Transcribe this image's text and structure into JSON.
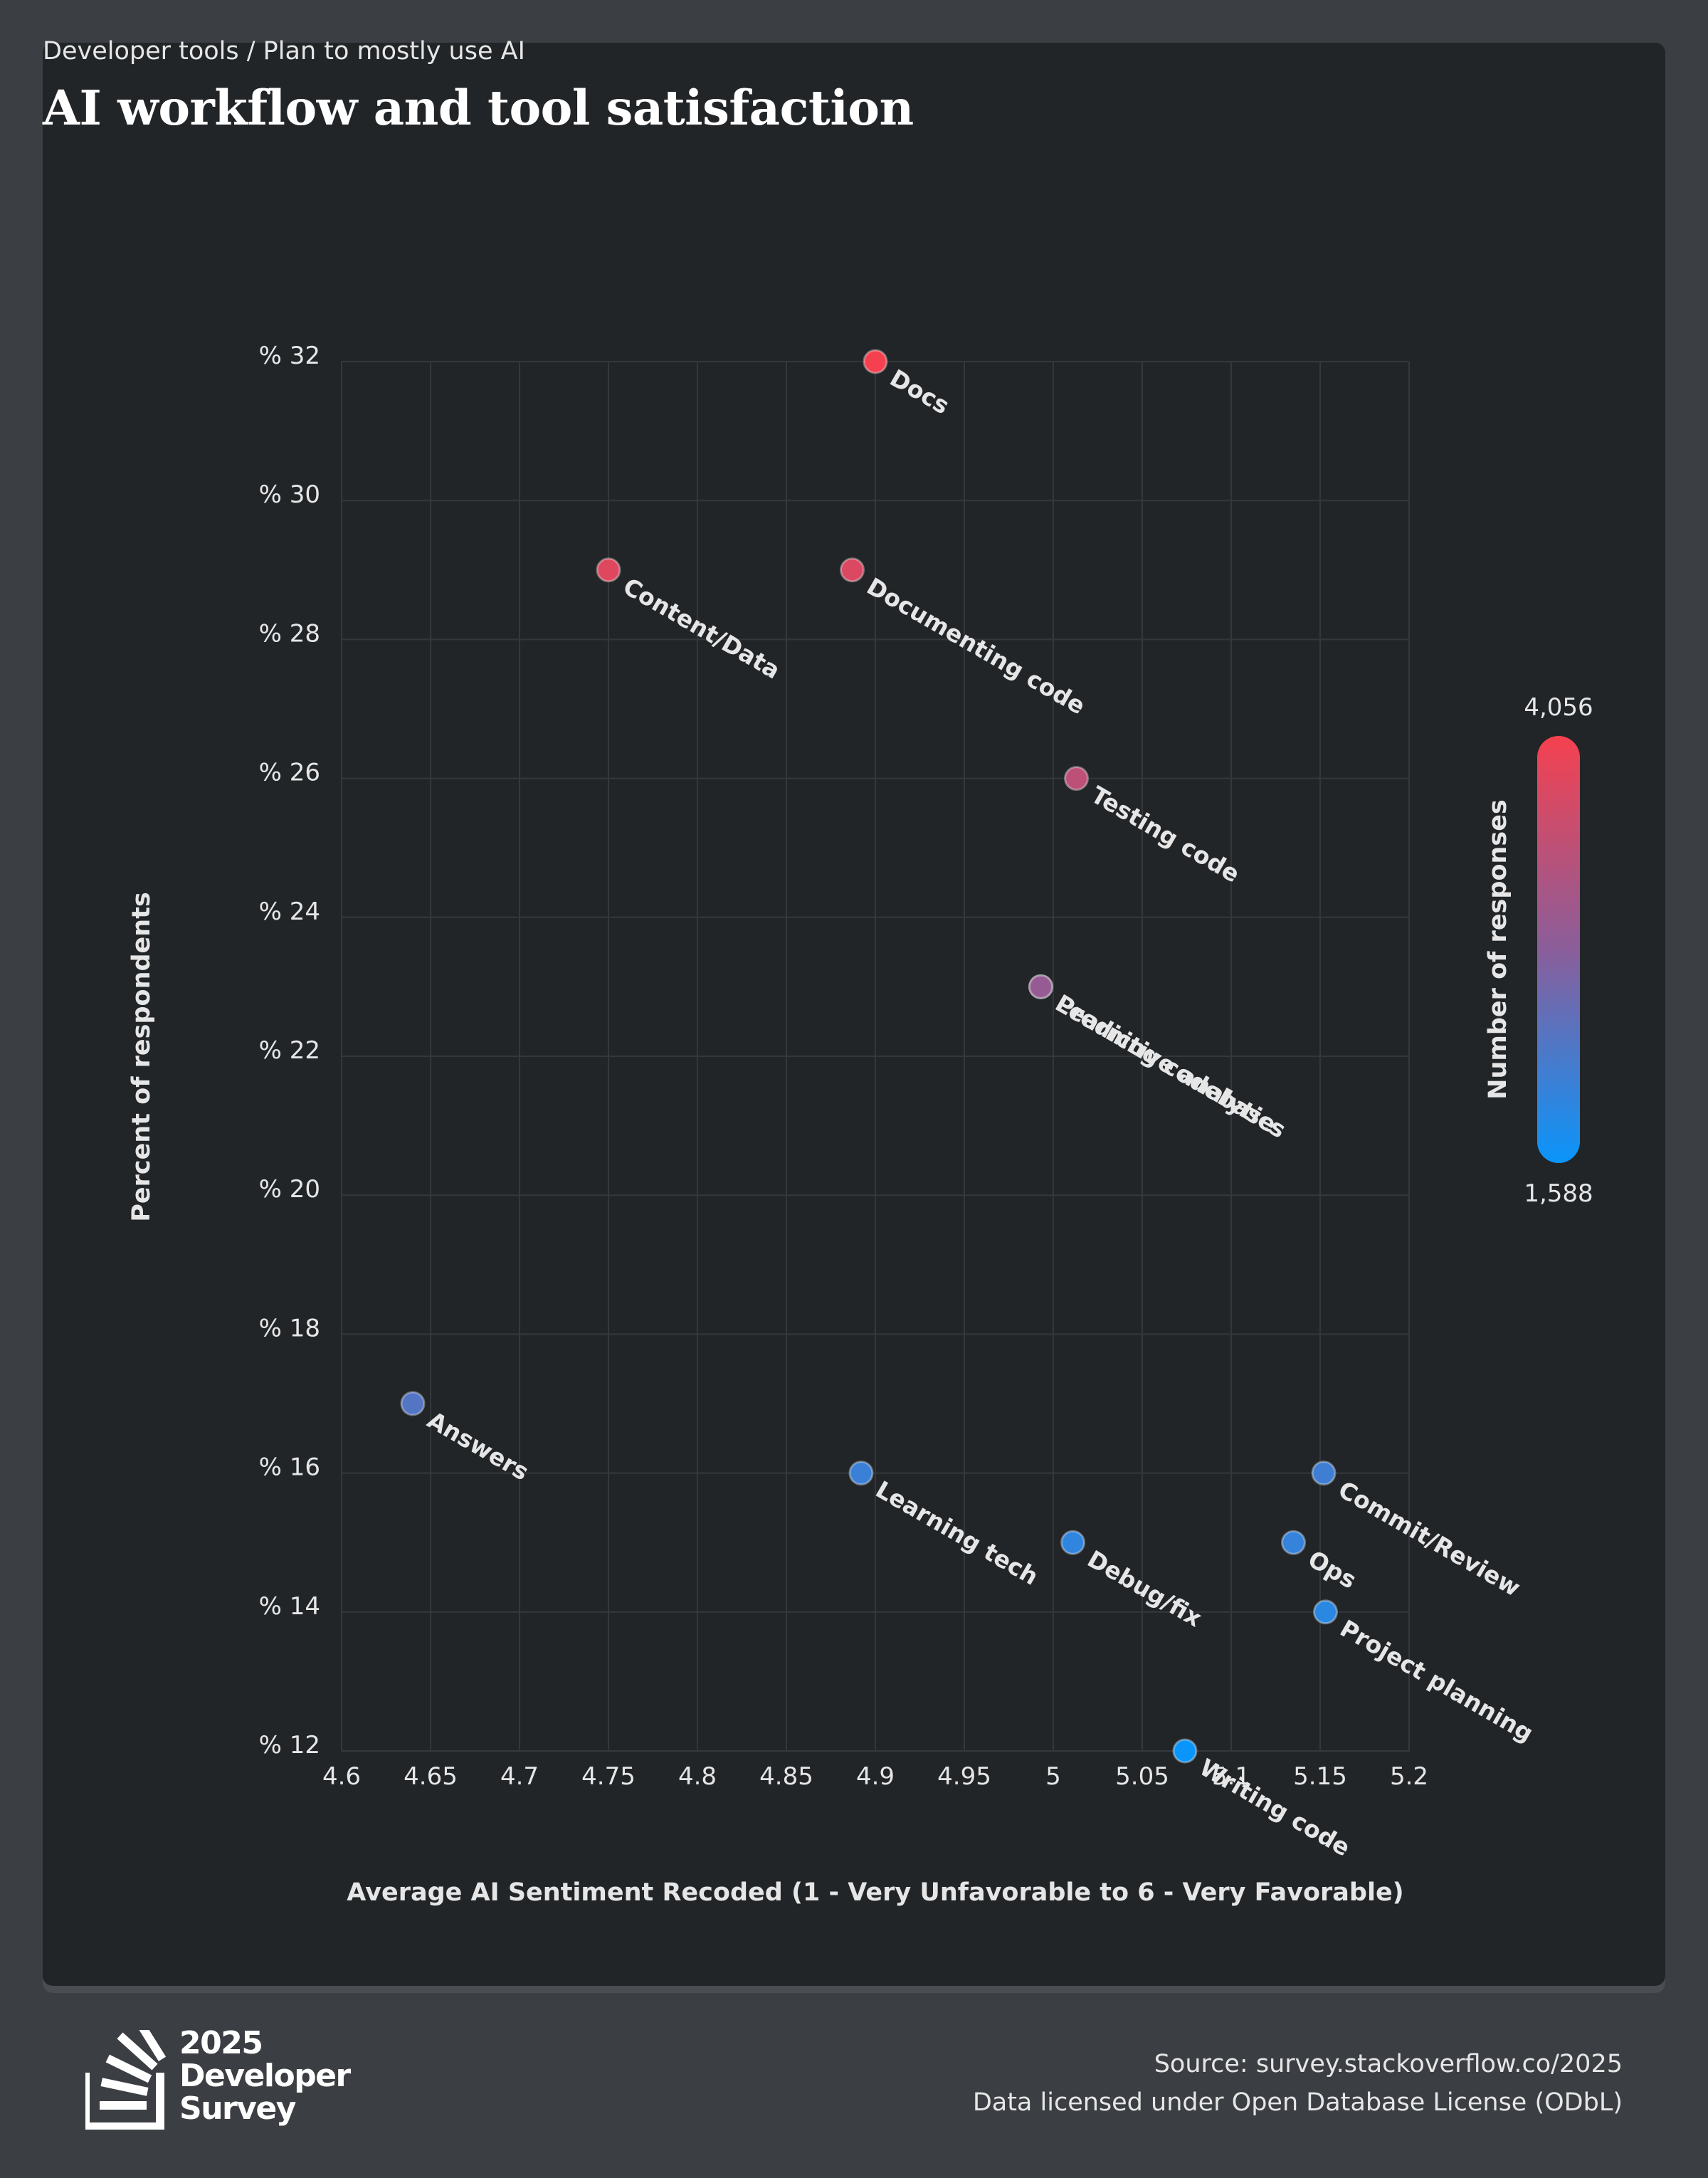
{
  "header": {
    "breadcrumb": "Developer tools / Plan to mostly use AI",
    "title": "AI workflow and tool satisfaction"
  },
  "colorbar": {
    "label": "Number of responses",
    "max_label": "4,056",
    "min_label": "1,588",
    "max_value": 4056,
    "min_value": 1588,
    "color_high": "#f5414f",
    "color_mid": "#8a5e9a",
    "color_low": "#0a95fa"
  },
  "chart_data": {
    "type": "scatter",
    "xlabel": "Average AI Sentiment Recoded (1 - Very Unfavorable to 6 - Very Favorable)",
    "ylabel": "Percent of respondents",
    "xlim": [
      4.6,
      5.2
    ],
    "ylim": [
      12,
      32
    ],
    "x_ticks": [
      4.6,
      4.65,
      4.7,
      4.75,
      4.8,
      4.85,
      4.9,
      4.95,
      5,
      5.05,
      5.1,
      5.15,
      5.2
    ],
    "x_tick_labels": [
      "4.6",
      "4.65",
      "4.7",
      "4.75",
      "4.8",
      "4.85",
      "4.9",
      "4.95",
      "5",
      "5.05",
      "5.1",
      "5.15",
      "5.2"
    ],
    "y_ticks": [
      12,
      14,
      16,
      18,
      20,
      22,
      24,
      26,
      28,
      30,
      32
    ],
    "y_tick_labels": [
      "% 12",
      "% 14",
      "% 16",
      "% 18",
      "% 20",
      "% 22",
      "% 24",
      "% 26",
      "% 28",
      "% 30",
      "% 32"
    ],
    "grid": true,
    "points": [
      {
        "label": "Docs",
        "x": 4.9,
        "y": 32,
        "responses": 4056
      },
      {
        "label": "Content/Data",
        "x": 4.75,
        "y": 29,
        "responses": 3800
      },
      {
        "label": "Documenting code",
        "x": 4.887,
        "y": 29,
        "responses": 3750
      },
      {
        "label": "Testing code",
        "x": 5.013,
        "y": 26,
        "responses": 3400
      },
      {
        "label": "Predictive analytics",
        "x": 4.993,
        "y": 23,
        "responses": 2950
      },
      {
        "label": "Learning codebase",
        "x": 4.993,
        "y": 23,
        "responses": 2950
      },
      {
        "label": "Answers",
        "x": 4.64,
        "y": 17,
        "responses": 2300
      },
      {
        "label": "Learning tech",
        "x": 4.892,
        "y": 16,
        "responses": 2050
      },
      {
        "label": "Commit/Review",
        "x": 5.152,
        "y": 16,
        "responses": 2100
      },
      {
        "label": "Debug/fix",
        "x": 5.011,
        "y": 15,
        "responses": 1950
      },
      {
        "label": "Ops",
        "x": 5.135,
        "y": 15,
        "responses": 2000
      },
      {
        "label": "Project planning",
        "x": 5.153,
        "y": 14,
        "responses": 1900
      },
      {
        "label": "Writing code",
        "x": 5.074,
        "y": 12,
        "responses": 1588
      }
    ]
  },
  "footer": {
    "logo_year": "2025",
    "logo_line2": "Developer",
    "logo_line3": "Survey",
    "source_text": "Source: survey.stackoverflow.co/2025",
    "license_text": "Data licensed under Open Database License (ODbL)"
  }
}
